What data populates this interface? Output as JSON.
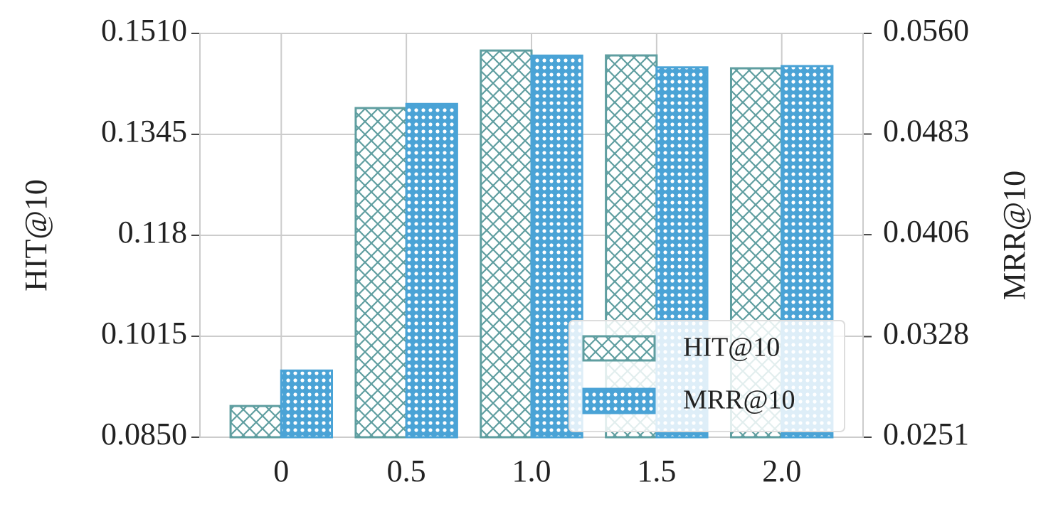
{
  "chart_data": {
    "type": "bar",
    "categories": [
      "0",
      "0.5",
      "1.0",
      "1.5",
      "2.0"
    ],
    "y_label": "HIT@10",
    "y2_label": "MRR@10",
    "series": [
      {
        "name": "HIT@10",
        "color": "#5f9ea0",
        "hatch": "cross",
        "values": [
          0.0901,
          0.1388,
          0.1482,
          0.1474,
          0.1453
        ]
      },
      {
        "name": "MRR@10",
        "color": "#4aa3d6",
        "hatch": "dots",
        "axis": "y2",
        "values": [
          0.0302,
          0.0506,
          0.0543,
          0.0534,
          0.0535
        ]
      }
    ],
    "ylim": [
      0.085,
      0.151
    ],
    "yticks": [
      {
        "value": 0.085,
        "label": "0.0850"
      },
      0.1015,
      0.118,
      0.1345,
      {
        "value": 0.151,
        "label": "0.1510"
      }
    ],
    "y2lim": [
      0.0251,
      0.056
    ],
    "y2ticks": [
      0.0251,
      0.0328,
      0.0406,
      0.0483,
      {
        "value": 0.056,
        "label": "0.0560"
      }
    ],
    "grid": true,
    "legend": "lower right"
  }
}
